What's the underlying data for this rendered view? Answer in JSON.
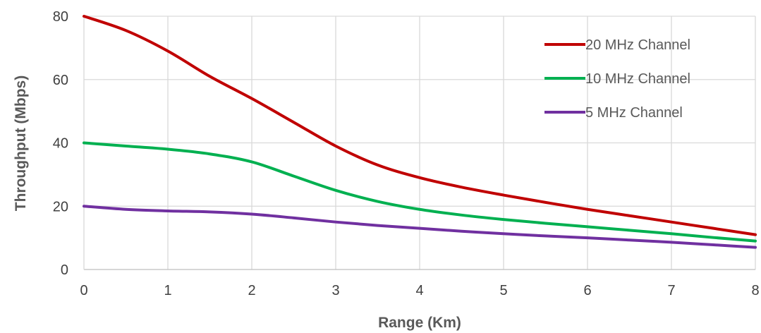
{
  "chart_data": {
    "type": "line",
    "xlabel": "Range (Km)",
    "ylabel": "Throughput (Mbps)",
    "xlim": [
      0,
      8
    ],
    "ylim": [
      0,
      80
    ],
    "xticks": [
      "0",
      "1",
      "2",
      "3",
      "4",
      "5",
      "6",
      "7",
      "8"
    ],
    "yticks": [
      "0",
      "20",
      "40",
      "60",
      "80"
    ],
    "grid": true,
    "legend_position": "top-right",
    "x": [
      0,
      0.5,
      1,
      1.5,
      2,
      2.5,
      3,
      3.5,
      4,
      4.5,
      5,
      5.5,
      6,
      6.5,
      7,
      7.5,
      8
    ],
    "series": [
      {
        "name": "20 MHz Channel",
        "color": "#c00000",
        "values": [
          80,
          75.5,
          69,
          61,
          54,
          46.5,
          39,
          33,
          29,
          26,
          23.5,
          21.2,
          19,
          17,
          15,
          13,
          11
        ]
      },
      {
        "name": "10 MHz Channel",
        "color": "#00b050",
        "values": [
          40,
          39,
          38,
          36.5,
          34,
          29.5,
          25,
          21.5,
          19,
          17.2,
          15.8,
          14.6,
          13.5,
          12.4,
          11.3,
          10.1,
          9
        ]
      },
      {
        "name": "5 MHz Channel",
        "color": "#7030a0",
        "values": [
          20,
          19,
          18.5,
          18.2,
          17.5,
          16.3,
          15,
          13.9,
          13,
          12.1,
          11.3,
          10.6,
          10,
          9.3,
          8.6,
          7.8,
          7
        ]
      }
    ]
  }
}
